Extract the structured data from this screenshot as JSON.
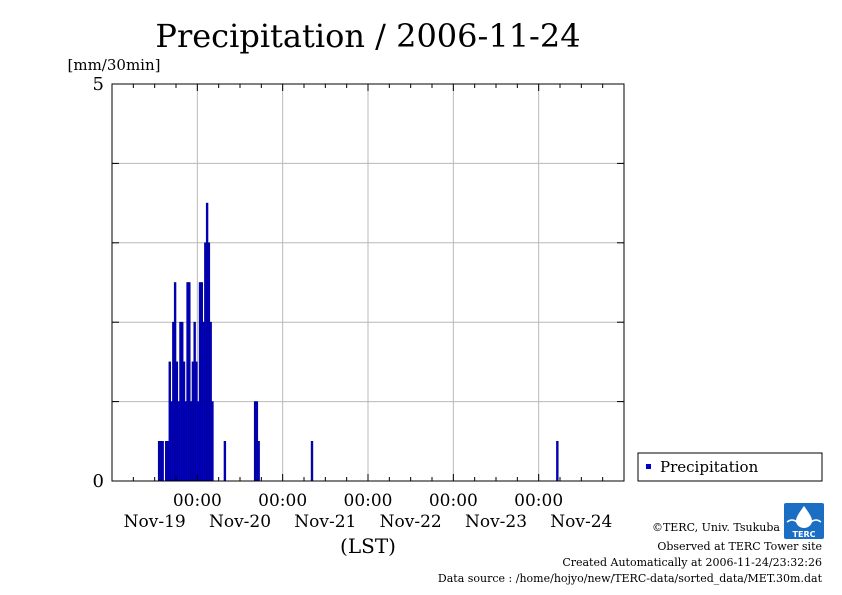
{
  "chart_data": {
    "type": "bar",
    "title": "Precipitation / 2006-11-24",
    "ylabel": "[mm/30min]",
    "xlabel": "(LST)",
    "ylim": [
      0,
      5
    ],
    "y_ticks": [
      {
        "value": 0,
        "label": "0"
      },
      {
        "value": 5,
        "label": "5"
      }
    ],
    "x_ticks": [
      {
        "hours": 24,
        "time_label": "00:00"
      },
      {
        "hours": 48,
        "time_label": "00:00"
      },
      {
        "hours": 72,
        "time_label": "00:00"
      },
      {
        "hours": 96,
        "time_label": "00:00"
      },
      {
        "hours": 120,
        "time_label": "00:00"
      }
    ],
    "date_labels": [
      {
        "hours": 12,
        "label": "Nov-19"
      },
      {
        "hours": 36,
        "label": "Nov-20"
      },
      {
        "hours": 60,
        "label": "Nov-21"
      },
      {
        "hours": 84,
        "label": "Nov-22"
      },
      {
        "hours": 108,
        "label": "Nov-23"
      },
      {
        "hours": 132,
        "label": "Nov-24"
      }
    ],
    "xlim_hours": [
      0,
      144
    ],
    "grid": true,
    "legend_position": "right",
    "series": [
      {
        "name": "Precipitation",
        "color": "#0000cc",
        "points": [
          {
            "t": 13.0,
            "v": 0.5
          },
          {
            "t": 13.5,
            "v": 0.5
          },
          {
            "t": 14.0,
            "v": 0.5
          },
          {
            "t": 15.0,
            "v": 0.5
          },
          {
            "t": 15.5,
            "v": 0.5
          },
          {
            "t": 16.0,
            "v": 1.5
          },
          {
            "t": 16.5,
            "v": 1.0
          },
          {
            "t": 17.0,
            "v": 2.0
          },
          {
            "t": 17.5,
            "v": 2.5
          },
          {
            "t": 18.0,
            "v": 1.5
          },
          {
            "t": 18.5,
            "v": 1.0
          },
          {
            "t": 19.0,
            "v": 2.0
          },
          {
            "t": 19.5,
            "v": 2.0
          },
          {
            "t": 20.0,
            "v": 1.5
          },
          {
            "t": 20.5,
            "v": 1.0
          },
          {
            "t": 21.0,
            "v": 2.5
          },
          {
            "t": 21.5,
            "v": 2.5
          },
          {
            "t": 22.0,
            "v": 1.0
          },
          {
            "t": 22.5,
            "v": 1.5
          },
          {
            "t": 23.0,
            "v": 2.0
          },
          {
            "t": 23.5,
            "v": 1.5
          },
          {
            "t": 24.0,
            "v": 1.0
          },
          {
            "t": 24.5,
            "v": 2.5
          },
          {
            "t": 25.0,
            "v": 2.5
          },
          {
            "t": 25.5,
            "v": 2.0
          },
          {
            "t": 26.0,
            "v": 3.0
          },
          {
            "t": 26.5,
            "v": 3.5
          },
          {
            "t": 27.0,
            "v": 3.0
          },
          {
            "t": 27.5,
            "v": 2.0
          },
          {
            "t": 28.0,
            "v": 1.0
          },
          {
            "t": 31.5,
            "v": 0.5
          },
          {
            "t": 40.0,
            "v": 1.0
          },
          {
            "t": 40.5,
            "v": 1.0
          },
          {
            "t": 41.0,
            "v": 0.5
          },
          {
            "t": 56.0,
            "v": 0.5
          },
          {
            "t": 125.0,
            "v": 0.5
          }
        ]
      }
    ]
  },
  "footer": {
    "credit": "©TERC, Univ. Tsukuba",
    "observed": "Observed at TERC Tower site",
    "created": "Created Automatically at 2006-11-24/23:32:26",
    "source": "Data source : /home/hojyo/new/TERC-data/sorted_data/MET.30m.dat"
  },
  "logo": {
    "text": "TERC",
    "color": "#1a6fc4"
  }
}
